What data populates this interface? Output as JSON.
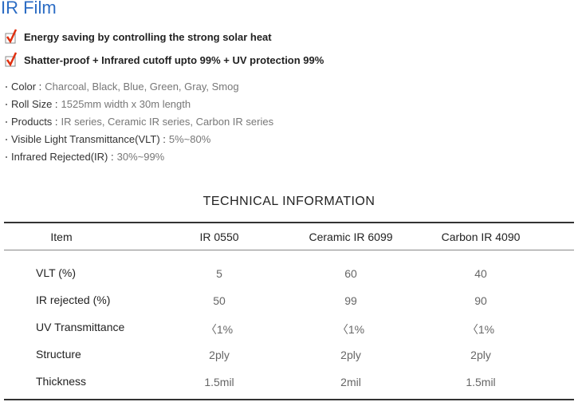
{
  "title": "IR Film",
  "features": [
    "Energy saving by controlling the strong solar heat",
    "Shatter-proof + Infrared cutoff upto 99% + UV protection 99%"
  ],
  "specs": [
    {
      "label": "Color :",
      "value": "Charcoal, Black, Blue, Green, Gray, Smog"
    },
    {
      "label": "Roll Size :",
      "value": "1525mm width x 30m length"
    },
    {
      "label": "Products :",
      "value": "IR series, Ceramic IR series, Carbon IR series"
    },
    {
      "label": "Visible Light Transmittance(VLT) :",
      "value": "5%~80%"
    },
    {
      "label": "Infrared Rejected(IR) :",
      "value": "30%~99%"
    }
  ],
  "table": {
    "title": "TECHNICAL INFORMATION",
    "header": [
      "Item",
      "IR 0550",
      "Ceramic IR 6099",
      "Carbon IR 4090"
    ],
    "rows": [
      [
        "VLT (%)",
        "5",
        "60",
        "40"
      ],
      [
        "IR rejected (%)",
        "50",
        "99",
        "90"
      ],
      [
        "UV Transmittance",
        "〈1%",
        "〈1%",
        "〈1%"
      ],
      [
        "Structure",
        "2ply",
        "2ply",
        "2ply"
      ],
      [
        "Thickness",
        "1.5mil",
        "2mil",
        "1.5mil"
      ]
    ]
  }
}
